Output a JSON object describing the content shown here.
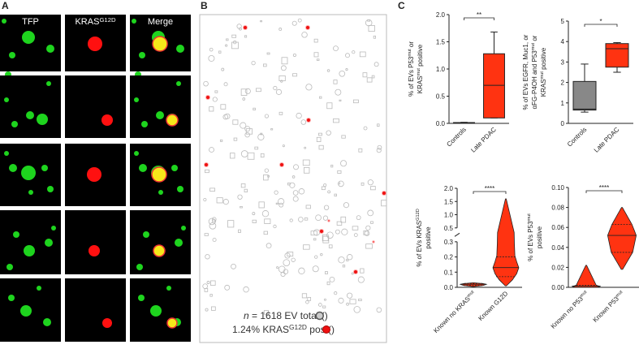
{
  "panel_labels": [
    "A",
    "B",
    "C"
  ],
  "panel_a": {
    "columns": [
      [
        "TFP"
      ],
      [
        "KRAS",
        "G12D"
      ],
      [
        "Merge"
      ]
    ]
  },
  "panel_b": {
    "total": {
      "var": "n",
      "text": " = 1618 EV total (",
      "end": ")"
    },
    "positive": {
      "text": "1.24% KRAS",
      "sup": "G12D",
      "text2": " pos (",
      "end": ")"
    }
  },
  "chart_data": [
    {
      "type": "box",
      "ylabel": [
        [
          "% of EVs P53",
          "mut",
          " or"
        ],
        [
          "KRAS",
          "mut",
          " positive"
        ]
      ],
      "categories": [
        [
          "Controls"
        ],
        [
          "Late PDAC"
        ]
      ],
      "colors": [
        "#222222",
        "#ff3311"
      ],
      "stats": [
        {
          "min": 0,
          "q1": 0.005,
          "median": 0.01,
          "q3": 0.015,
          "max": 0.02
        },
        {
          "min": 0.1,
          "q1": 0.1,
          "median": 0.7,
          "q3": 1.28,
          "max": 1.68
        }
      ],
      "significance": "**",
      "ylim": [
        0,
        2.0
      ],
      "yticks": [
        {
          "value": 0,
          "label": "0.0"
        },
        {
          "value": 0.5,
          "label": "0.5"
        },
        {
          "value": 1,
          "label": "1.0"
        },
        {
          "value": 1.5,
          "label": "1.5"
        },
        {
          "value": 2,
          "label": "2.0"
        }
      ]
    },
    {
      "type": "box",
      "ylabel": [
        [
          "% of EVs EGFR, Muc1, or"
        ],
        [
          "αFG-P4OH and P53",
          "mut",
          " or"
        ],
        [
          "KRAS",
          "mut",
          " positive"
        ]
      ],
      "categories": [
        [
          "Controls"
        ],
        [
          "Late PDAC"
        ]
      ],
      "colors": [
        "#888888",
        "#ff3311"
      ],
      "stats": [
        {
          "min": 0.55,
          "q1": 0.65,
          "median": 0.7,
          "q3": 2.05,
          "max": 2.9
        },
        {
          "min": 2.5,
          "q1": 2.75,
          "median": 3.65,
          "q3": 3.9,
          "max": 3.95
        }
      ],
      "significance": "*",
      "ylim": [
        0,
        5
      ],
      "yticks": [
        0,
        1,
        2,
        3,
        4,
        5
      ]
    },
    {
      "type": "violin",
      "ylabel": [
        [
          "% of EVs KRAS",
          "G12D"
        ],
        [
          "positive"
        ]
      ],
      "categories": [
        [
          "Known no KRAS",
          "mut"
        ],
        [
          "Known G12D"
        ]
      ],
      "colors": [
        "#ff3311",
        "#ff3311"
      ],
      "stats": [
        {
          "min": 0.005,
          "q1": 0.012,
          "median": 0.02,
          "q3": 0.025,
          "max": 0.03
        },
        {
          "min": 0.01,
          "q1": 0.07,
          "median": 0.13,
          "q3": 0.2,
          "max": 1.6
        }
      ],
      "significance": "****",
      "ylim": [
        0,
        2.0
      ],
      "ybreak": [
        0.3,
        0.5
      ],
      "yticks": [
        {
          "value": 0,
          "label": "0.0"
        },
        {
          "value": 0.1,
          "label": "0.1"
        },
        {
          "value": 0.2,
          "label": "0.2"
        },
        {
          "value": 0.3,
          "label": "0.3"
        },
        {
          "value": 0.5,
          "label": "0.5"
        },
        {
          "value": 1,
          "label": "1.0"
        },
        {
          "value": 1.5,
          "label": "1.5"
        },
        {
          "value": 2,
          "label": "2.0"
        }
      ]
    },
    {
      "type": "violin",
      "ylabel": [
        [
          "% of EVs P53",
          "mut"
        ],
        [
          "positive"
        ]
      ],
      "categories": [
        [
          "Known no P53",
          "mut"
        ],
        [
          "Known P53",
          "mut"
        ]
      ],
      "colors": [
        "#ff3311",
        "#ff3311"
      ],
      "stats": [
        {
          "min": 0,
          "q1": 0,
          "median": 0.001,
          "q3": 0.002,
          "max": 0.022
        },
        {
          "min": 0.018,
          "q1": 0.035,
          "median": 0.052,
          "q3": 0.063,
          "max": 0.08
        }
      ],
      "significance": "****",
      "ylim": [
        0,
        0.1
      ],
      "yticks": [
        {
          "value": 0,
          "label": "0.00"
        },
        {
          "value": 0.02,
          "label": "0.02"
        },
        {
          "value": 0.04,
          "label": "0.04"
        },
        {
          "value": 0.06,
          "label": "0.06"
        },
        {
          "value": 0.08,
          "label": "0.08"
        },
        {
          "value": 0.1,
          "label": "0.10"
        }
      ]
    }
  ]
}
